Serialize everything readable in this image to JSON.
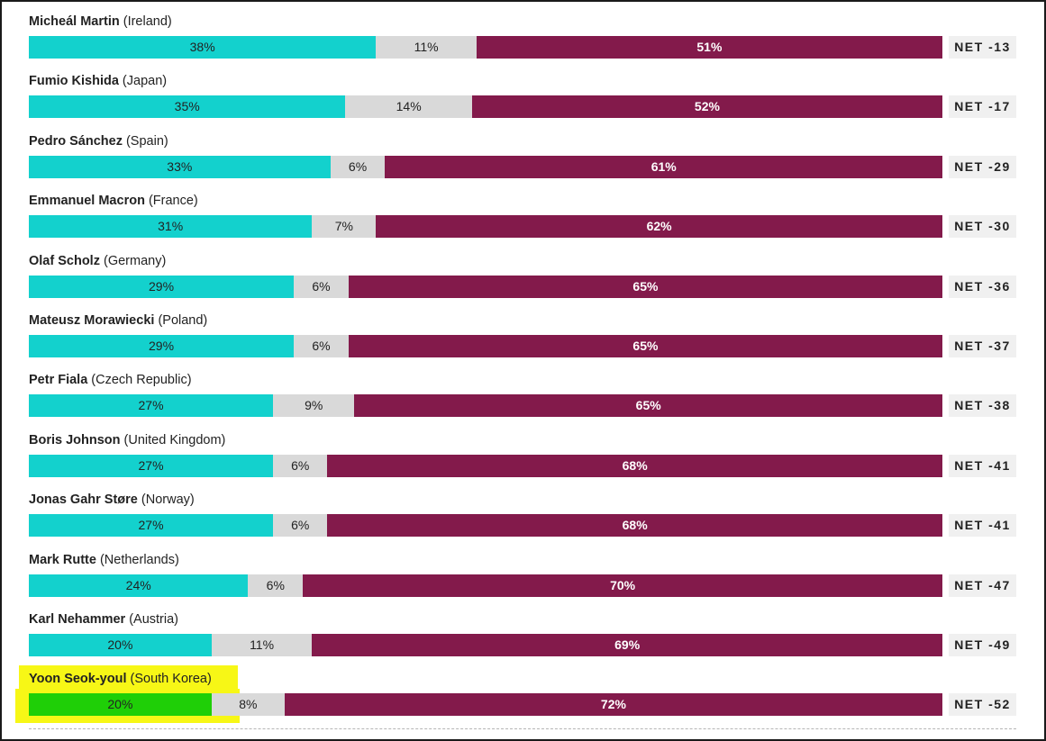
{
  "chart_data": {
    "type": "bar",
    "stacked": true,
    "orientation": "horizontal",
    "segment_colors": {
      "approve": "#13d1cd",
      "dont_know": "#d9d9d9",
      "disapprove": "#831a4b"
    },
    "highlight_color": "#f7f716",
    "highlight_bar_color": "#1fcf07",
    "rows": [
      {
        "name": "Micheál Martin",
        "country": "(Ireland)",
        "approve": 38,
        "approve_label": "38%",
        "dont_know": 11,
        "dont_know_label": "11%",
        "disapprove": 51,
        "disapprove_label": "51%",
        "net": "NET -13"
      },
      {
        "name": "Fumio Kishida",
        "country": "(Japan)",
        "approve": 35,
        "approve_label": "35%",
        "dont_know": 14,
        "dont_know_label": "14%",
        "disapprove": 52,
        "disapprove_label": "52%",
        "net": "NET -17"
      },
      {
        "name": "Pedro Sánchez",
        "country": "(Spain)",
        "approve": 33,
        "approve_label": "33%",
        "dont_know": 6,
        "dont_know_label": "6%",
        "disapprove": 61,
        "disapprove_label": "61%",
        "net": "NET -29"
      },
      {
        "name": "Emmanuel Macron",
        "country": "(France)",
        "approve": 31,
        "approve_label": "31%",
        "dont_know": 7,
        "dont_know_label": "7%",
        "disapprove": 62,
        "disapprove_label": "62%",
        "net": "NET -30"
      },
      {
        "name": "Olaf Scholz",
        "country": "(Germany)",
        "approve": 29,
        "approve_label": "29%",
        "dont_know": 6,
        "dont_know_label": "6%",
        "disapprove": 65,
        "disapprove_label": "65%",
        "net": "NET -36"
      },
      {
        "name": "Mateusz Morawiecki",
        "country": "(Poland)",
        "approve": 29,
        "approve_label": "29%",
        "dont_know": 6,
        "dont_know_label": "6%",
        "disapprove": 65,
        "disapprove_label": "65%",
        "net": "NET -37"
      },
      {
        "name": "Petr Fiala",
        "country": "(Czech Republic)",
        "approve": 27,
        "approve_label": "27%",
        "dont_know": 9,
        "dont_know_label": "9%",
        "disapprove": 65,
        "disapprove_label": "65%",
        "net": "NET -38"
      },
      {
        "name": "Boris Johnson",
        "country": "(United Kingdom)",
        "approve": 27,
        "approve_label": "27%",
        "dont_know": 6,
        "dont_know_label": "6%",
        "disapprove": 68,
        "disapprove_label": "68%",
        "net": "NET -41"
      },
      {
        "name": "Jonas Gahr Støre",
        "country": "(Norway)",
        "approve": 27,
        "approve_label": "27%",
        "dont_know": 6,
        "dont_know_label": "6%",
        "disapprove": 68,
        "disapprove_label": "68%",
        "net": "NET -41"
      },
      {
        "name": "Mark Rutte",
        "country": "(Netherlands)",
        "approve": 24,
        "approve_label": "24%",
        "dont_know": 6,
        "dont_know_label": "6%",
        "disapprove": 70,
        "disapprove_label": "70%",
        "net": "NET -47"
      },
      {
        "name": "Karl Nehammer",
        "country": "(Austria)",
        "approve": 20,
        "approve_label": "20%",
        "dont_know": 11,
        "dont_know_label": "11%",
        "disapprove": 69,
        "disapprove_label": "69%",
        "net": "NET -49"
      },
      {
        "name": "Yoon Seok-youl",
        "country": "(South Korea)",
        "approve": 20,
        "approve_label": "20%",
        "dont_know": 8,
        "dont_know_label": "8%",
        "disapprove": 72,
        "disapprove_label": "72%",
        "net": "NET -52",
        "highlighted": true
      }
    ]
  }
}
